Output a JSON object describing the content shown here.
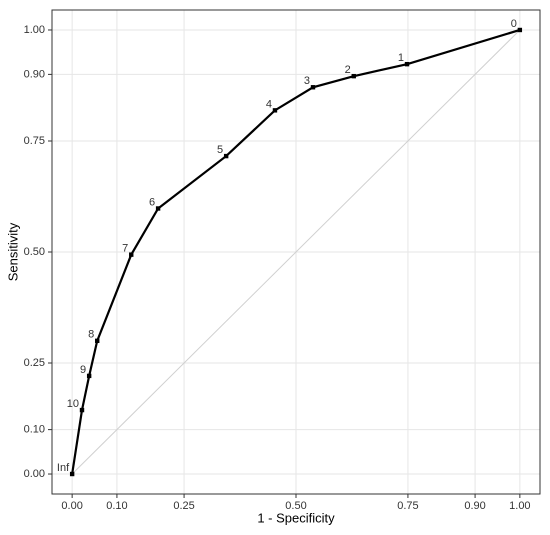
{
  "chart_data": {
    "type": "line",
    "x_label": "1 - Specificity",
    "y_label": "Sensitivity",
    "x": [
      0,
      0.022,
      0.038,
      0.056,
      0.132,
      0.192,
      0.344,
      0.453,
      0.538,
      0.629,
      0.748,
      1
    ],
    "point_labels": [
      "Inf",
      "10",
      "9",
      "8",
      "7",
      "6",
      "5",
      "4",
      "3",
      "2",
      "1",
      "0"
    ],
    "series": [
      {
        "color": "#000000",
        "values": [
          0,
          0.144,
          0.221,
          0.3,
          0.494,
          0.598,
          0.716,
          0.819,
          0.871,
          0.896,
          0.923,
          1
        ]
      }
    ],
    "xlim": [
      -0.045,
      1.045
    ],
    "ylim": [
      -0.045,
      1.045
    ],
    "xticks": [
      {
        "value": 0,
        "label": "0.00"
      },
      {
        "value": 0.1,
        "label": "0.10"
      },
      {
        "value": 0.25,
        "label": "0.25"
      },
      {
        "value": 0.5,
        "label": "0.50"
      },
      {
        "value": 0.75,
        "label": "0.75"
      },
      {
        "value": 0.9,
        "label": "0.90"
      },
      {
        "value": 1,
        "label": "1.00"
      }
    ],
    "yticks": [
      {
        "value": 0,
        "label": "0.00"
      },
      {
        "value": 0.1,
        "label": "0.10"
      },
      {
        "value": 0.25,
        "label": "0.25"
      },
      {
        "value": 0.5,
        "label": "0.50"
      },
      {
        "value": 0.75,
        "label": "0.75"
      },
      {
        "value": 0.9,
        "label": "0.90"
      },
      {
        "value": 1,
        "label": "1.00"
      }
    ],
    "grid": true
  }
}
